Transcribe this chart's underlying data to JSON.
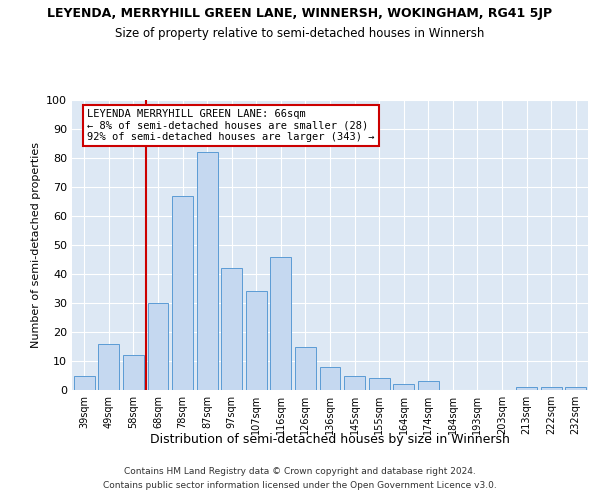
{
  "title": "LEYENDA, MERRYHILL GREEN LANE, WINNERSH, WOKINGHAM, RG41 5JP",
  "subtitle": "Size of property relative to semi-detached houses in Winnersh",
  "xlabel": "Distribution of semi-detached houses by size in Winnersh",
  "ylabel": "Number of semi-detached properties",
  "categories": [
    "39sqm",
    "49sqm",
    "58sqm",
    "68sqm",
    "78sqm",
    "87sqm",
    "97sqm",
    "107sqm",
    "116sqm",
    "126sqm",
    "136sqm",
    "145sqm",
    "155sqm",
    "164sqm",
    "174sqm",
    "184sqm",
    "193sqm",
    "203sqm",
    "213sqm",
    "222sqm",
    "232sqm"
  ],
  "values": [
    5,
    16,
    12,
    30,
    67,
    82,
    42,
    34,
    46,
    15,
    8,
    5,
    4,
    2,
    3,
    0,
    0,
    0,
    1,
    1,
    1
  ],
  "bar_color": "#c5d8f0",
  "bar_edge_color": "#5b9bd5",
  "vline_x": 2.5,
  "vline_color": "#cc0000",
  "annotation_title": "LEYENDA MERRYHILL GREEN LANE: 66sqm",
  "annotation_line1": "← 8% of semi-detached houses are smaller (28)",
  "annotation_line2": "92% of semi-detached houses are larger (343) →",
  "annotation_box_color": "#ffffff",
  "annotation_box_edge": "#cc0000",
  "ylim": [
    0,
    100
  ],
  "yticks": [
    0,
    10,
    20,
    30,
    40,
    50,
    60,
    70,
    80,
    90,
    100
  ],
  "bg_color": "#dde8f4",
  "footer1": "Contains HM Land Registry data © Crown copyright and database right 2024.",
  "footer2": "Contains public sector information licensed under the Open Government Licence v3.0."
}
